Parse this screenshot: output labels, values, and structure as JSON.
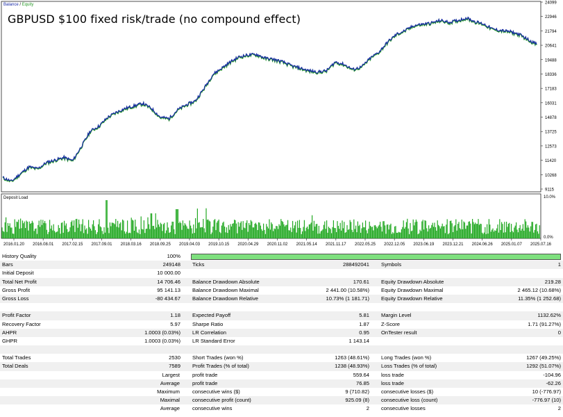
{
  "chart": {
    "legend_balance": "Balance",
    "legend_sep": " / ",
    "legend_equity": "Equity",
    "headline": "GBPUSD $100 fixed risk/trade (no compound effect)",
    "y_ticks": [
      "24099",
      "22946",
      "21794",
      "20641",
      "19488",
      "18336",
      "17183",
      "16031",
      "14878",
      "13725",
      "12573",
      "11420",
      "10268",
      "9115"
    ],
    "balance_color": "#1a2ba8",
    "equity_color": "#2a9a2a",
    "x_ticks": [
      "2016.01.20",
      "2016.08.01",
      "2017.02.15",
      "2017.09.01",
      "2018.03.16",
      "2018.09.25",
      "2019.04.03",
      "2019.10.15",
      "2020.04.29",
      "2020.11.02",
      "2021.05.14",
      "2021.11.17",
      "2022.05.25",
      "2022.12.05",
      "2023.06.19",
      "2023.12.21",
      "2024.06.26",
      "2025.01.07",
      "2025.07.16"
    ]
  },
  "chart_data": {
    "type": "line",
    "series": [
      {
        "name": "Balance",
        "values": [
          10200,
          9900,
          10500,
          11050,
          10900,
          11400,
          11600,
          11800,
          11550,
          12700,
          13900,
          14300,
          15000,
          15400,
          15700,
          15900,
          16100,
          15700,
          15000,
          14900,
          15600,
          16000,
          16300,
          17300,
          18400,
          18900,
          19400,
          19800,
          19950,
          20000,
          19700,
          19600,
          19400,
          19100,
          18900,
          18700,
          18600,
          18700,
          19400,
          19200,
          18800,
          19000,
          19700,
          20200,
          21000,
          21600,
          21900,
          22300,
          22400,
          22500,
          22700,
          22550,
          22700,
          22900,
          22600,
          22400,
          22000,
          21900,
          21800,
          21600,
          21200,
          20800
        ]
      },
      {
        "name": "Equity",
        "values": [
          10150,
          9850,
          10450,
          11000,
          10850,
          11350,
          11550,
          11750,
          11500,
          12650,
          13850,
          14250,
          14950,
          15350,
          15650,
          15850,
          16050,
          15650,
          14950,
          14850,
          15550,
          15950,
          16250,
          17250,
          18350,
          18850,
          19350,
          19750,
          19900,
          19950,
          19650,
          19550,
          19350,
          19050,
          18850,
          18650,
          18550,
          18650,
          19350,
          19150,
          18750,
          18950,
          19650,
          20150,
          20950,
          21550,
          21850,
          22250,
          22350,
          22450,
          22650,
          22500,
          22650,
          22850,
          22550,
          22350,
          21950,
          21850,
          21750,
          21550,
          21150,
          20750
        ]
      }
    ],
    "y_axis_ticks": [
      24099,
      22946,
      21794,
      20641,
      19488,
      18336,
      17183,
      16031,
      14878,
      13725,
      12573,
      11420,
      10268,
      9115
    ],
    "ylim": [
      9115,
      24099
    ],
    "grid": true
  },
  "load": {
    "label": "Deposit Load",
    "tick_top": "10.0%",
    "tick_bottom": "0.0%",
    "color": "#22a822"
  },
  "report": {
    "history_quality": {
      "label": "History Quality",
      "value": "100%",
      "fraction": 1.0
    },
    "bars": {
      "label": "Bars",
      "value": "249148"
    },
    "ticks": {
      "label": "Ticks",
      "value": "288492041"
    },
    "symbols": {
      "label": "Symbols",
      "value": "1"
    },
    "initial_deposit": {
      "label": "Initial Deposit",
      "value": "10 000.00"
    },
    "total_net_profit": {
      "label": "Total Net Profit",
      "value": "14 706.46"
    },
    "balance_dd_abs": {
      "label": "Balance Drawdown Absolute",
      "value": "170.61"
    },
    "equity_dd_abs": {
      "label": "Equity Drawdown Absolute",
      "value": "219.28"
    },
    "gross_profit": {
      "label": "Gross Profit",
      "value": "95 141.13"
    },
    "balance_dd_max": {
      "label": "Balance Drawdown Maximal",
      "value": "2 441.00 (10.58%)"
    },
    "equity_dd_max": {
      "label": "Equity Drawdown Maximal",
      "value": "2 465.12 (10.68%)"
    },
    "gross_loss": {
      "label": "Gross Loss",
      "value": "-80 434.67"
    },
    "balance_dd_rel": {
      "label": "Balance Drawdown Relative",
      "value": "10.73% (1 181.71)"
    },
    "equity_dd_rel": {
      "label": "Equity Drawdown Relative",
      "value": "11.35% (1 252.68)"
    },
    "profit_factor": {
      "label": "Profit Factor",
      "value": "1.18"
    },
    "expected_payoff": {
      "label": "Expected Payoff",
      "value": "5.81"
    },
    "margin_level": {
      "label": "Margin Level",
      "value": "1132.62%"
    },
    "recovery_factor": {
      "label": "Recovery Factor",
      "value": "5.97"
    },
    "sharpe_ratio": {
      "label": "Sharpe Ratio",
      "value": "1.87"
    },
    "z_score": {
      "label": "Z-Score",
      "value": "1.71 (91.27%)"
    },
    "ahpr": {
      "label": "AHPR",
      "value": "1.0003 (0.03%)"
    },
    "lr_correlation": {
      "label": "LR Correlation",
      "value": "0.95"
    },
    "ontester": {
      "label": "OnTester result",
      "value": "0"
    },
    "ghpr": {
      "label": "GHPR",
      "value": "1.0003 (0.03%)"
    },
    "lr_std_error": {
      "label": "LR Standard Error",
      "value": "1 143.14"
    },
    "total_trades": {
      "label": "Total Trades",
      "value": "2530"
    },
    "short_trades": {
      "label": "Short Trades (won %)",
      "value": "1263 (48.61%)"
    },
    "long_trades": {
      "label": "Long Trades (won %)",
      "value": "1267 (49.25%)"
    },
    "total_deals": {
      "label": "Total Deals",
      "value": "7589"
    },
    "profit_trades": {
      "label": "Profit Trades (% of total)",
      "value": "1238 (48.93%)"
    },
    "loss_trades": {
      "label": "Loss Trades (% of total)",
      "value": "1292 (51.07%)"
    },
    "largest": {
      "label": "Largest",
      "profit_label": "profit trade",
      "profit_value": "559.64",
      "loss_label": "loss trade",
      "loss_value": "-104.96"
    },
    "average": {
      "label": "Average",
      "profit_label": "profit trade",
      "profit_value": "76.85",
      "loss_label": "loss trade",
      "loss_value": "-62.26"
    },
    "maximum": {
      "label": "Maximum",
      "profit_label": "consecutive wins ($)",
      "profit_value": "9 (710.82)",
      "loss_label": "consecutive losses ($)",
      "loss_value": "10 (-776.97)"
    },
    "maximal": {
      "label": "Maximal",
      "profit_label": "consecutive profit (count)",
      "profit_value": "925.09 (8)",
      "loss_label": "consecutive loss (count)",
      "loss_value": "-776.97 (10)"
    },
    "average2": {
      "label": "Average",
      "profit_label": "consecutive wins",
      "profit_value": "2",
      "loss_label": "consecutive losses",
      "loss_value": "2"
    }
  }
}
